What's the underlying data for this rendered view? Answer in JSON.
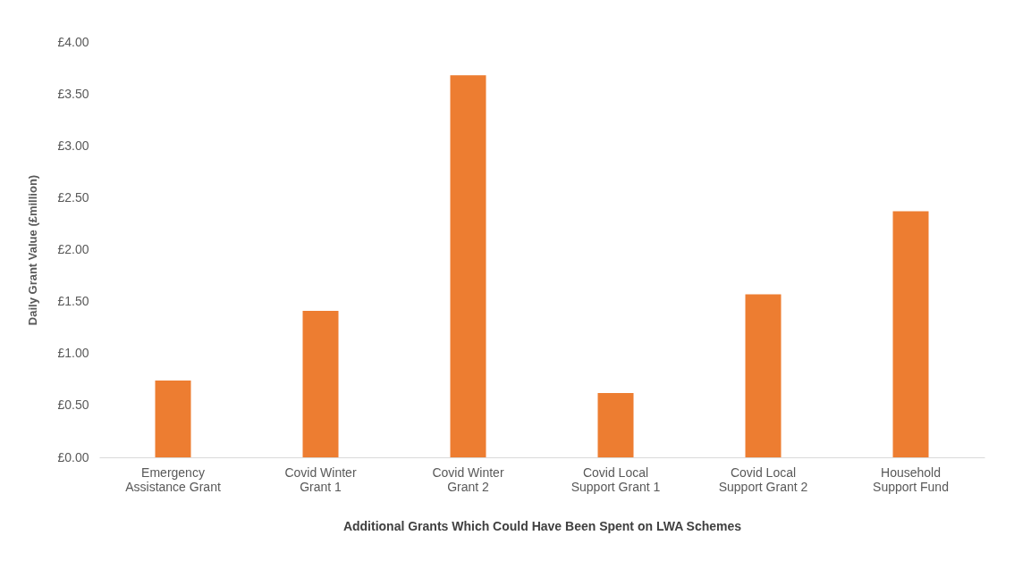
{
  "chart_data": {
    "type": "bar",
    "categories": [
      [
        "Emergency",
        "Assistance Grant"
      ],
      [
        "Covid Winter",
        "Grant 1"
      ],
      [
        "Covid Winter",
        "Grant 2"
      ],
      [
        "Covid Local",
        "Support Grant 1"
      ],
      [
        "Covid Local",
        "Support Grant 2"
      ],
      [
        "Household",
        "Support Fund"
      ]
    ],
    "values": [
      0.74,
      1.41,
      3.68,
      0.62,
      1.57,
      2.37
    ],
    "color": "#ed7d31",
    "xlabel": "Additional Grants Which Could Have Been Spent on LWA Schemes",
    "ylabel": "Daily Grant Value (£million)",
    "ylim": [
      0,
      4
    ],
    "yticks": [
      {
        "value": 0,
        "label": "£0.00"
      },
      {
        "value": 0.5,
        "label": "£0.50"
      },
      {
        "value": 1,
        "label": "£1.00"
      },
      {
        "value": 1.5,
        "label": "£1.50"
      },
      {
        "value": 2,
        "label": "£2.00"
      },
      {
        "value": 2.5,
        "label": "£2.50"
      },
      {
        "value": 3,
        "label": "£3.00"
      },
      {
        "value": 3.5,
        "label": "£3.50"
      },
      {
        "value": 4,
        "label": "£4.00"
      }
    ],
    "grid": false
  }
}
